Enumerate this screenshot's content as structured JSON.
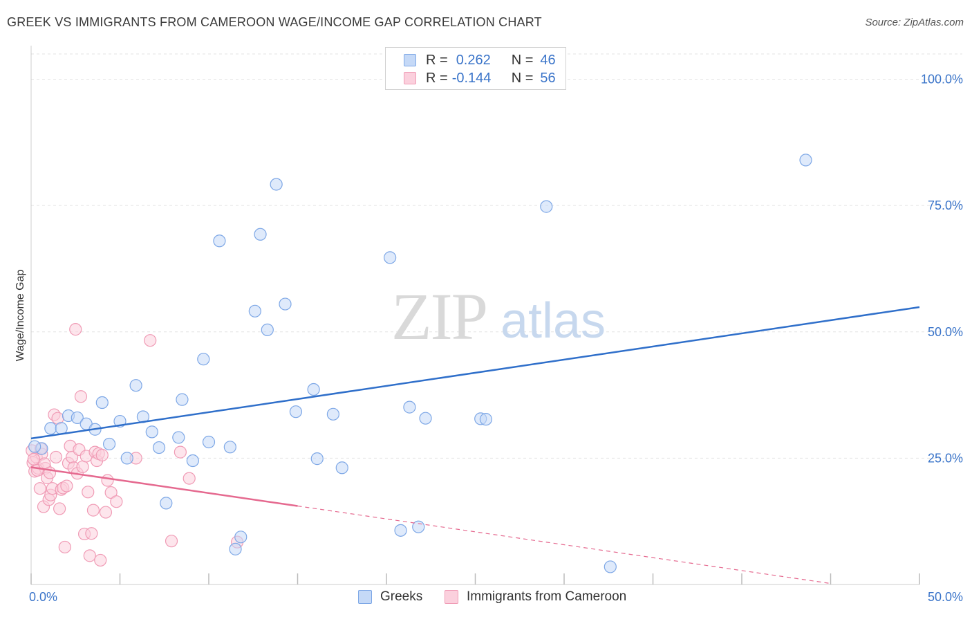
{
  "header": {
    "title": "GREEK VS IMMIGRANTS FROM CAMEROON WAGE/INCOME GAP CORRELATION CHART",
    "source": "Source: ZipAtlas.com"
  },
  "legend": {
    "r_label": "R =",
    "n_label": "N =",
    "blue": {
      "r": "0.262",
      "n": "46"
    },
    "pink": {
      "r": "-0.144",
      "n": "56"
    }
  },
  "bottom_legend": {
    "greeks": "Greeks",
    "cameroon": "Immigrants from Cameroon"
  },
  "watermark": {
    "zip": "ZIP",
    "atlas": "atlas"
  },
  "colors": {
    "blue_fill": "#c5d9f7",
    "blue_stroke": "#7da7e6",
    "blue_line": "#2f6fca",
    "pink_fill": "#fbd0dd",
    "pink_stroke": "#f09bb5",
    "pink_line": "#e5698f",
    "tick_label": "#3a74c9",
    "grid": "#e3e3e3"
  },
  "chart_data": {
    "type": "scatter",
    "title": "GREEK VS IMMIGRANTS FROM CAMEROON WAGE/INCOME GAP CORRELATION CHART",
    "xlabel": "",
    "ylabel": "Wage/Income Gap",
    "xlim": [
      0,
      50
    ],
    "ylim": [
      0,
      105
    ],
    "x_tick_labels": [
      {
        "v": 0,
        "label": "0.0%"
      },
      {
        "v": 50,
        "label": "50.0%"
      }
    ],
    "x_tick_marks": [
      0,
      5,
      10,
      15,
      20,
      25,
      30,
      35,
      40,
      45,
      50
    ],
    "y_ticks": [
      {
        "v": 25,
        "label": "25.0%"
      },
      {
        "v": 50,
        "label": "50.0%"
      },
      {
        "v": 75,
        "label": "75.0%"
      },
      {
        "v": 100,
        "label": "100.0%"
      }
    ],
    "legend_position": "top-center",
    "series": [
      {
        "name": "Greeks",
        "color": "blue",
        "trend": {
          "x0": 0,
          "y0": 28.9,
          "x1": 50,
          "y1": 54.9,
          "solid_to": 50
        },
        "points": [
          [
            0.6,
            26.9
          ],
          [
            1.1,
            30.9
          ],
          [
            1.7,
            30.9
          ],
          [
            2.1,
            33.4
          ],
          [
            2.6,
            33.0
          ],
          [
            3.1,
            31.8
          ],
          [
            3.6,
            30.7
          ],
          [
            4.0,
            36.0
          ],
          [
            4.4,
            27.8
          ],
          [
            5.0,
            32.3
          ],
          [
            5.4,
            25.0
          ],
          [
            5.9,
            39.4
          ],
          [
            6.3,
            33.2
          ],
          [
            6.8,
            30.2
          ],
          [
            7.2,
            27.1
          ],
          [
            7.6,
            16.1
          ],
          [
            8.3,
            29.1
          ],
          [
            8.5,
            36.6
          ],
          [
            9.1,
            24.5
          ],
          [
            9.7,
            44.6
          ],
          [
            10.0,
            28.2
          ],
          [
            10.6,
            68.0
          ],
          [
            11.2,
            27.2
          ],
          [
            11.5,
            7.0
          ],
          [
            11.8,
            9.4
          ],
          [
            12.6,
            54.1
          ],
          [
            12.9,
            69.3
          ],
          [
            13.3,
            50.4
          ],
          [
            13.8,
            79.2
          ],
          [
            14.3,
            55.5
          ],
          [
            14.9,
            34.2
          ],
          [
            15.9,
            38.6
          ],
          [
            16.1,
            24.9
          ],
          [
            17.0,
            33.7
          ],
          [
            17.5,
            23.1
          ],
          [
            20.2,
            64.7
          ],
          [
            20.8,
            10.7
          ],
          [
            21.3,
            35.1
          ],
          [
            21.8,
            11.4
          ],
          [
            22.2,
            32.9
          ],
          [
            25.3,
            32.8
          ],
          [
            25.6,
            32.7
          ],
          [
            29.0,
            74.8
          ],
          [
            32.6,
            3.5
          ],
          [
            43.6,
            84.0
          ],
          [
            0.2,
            27.3
          ]
        ]
      },
      {
        "name": "Immigrants from Cameroon",
        "color": "pink",
        "trend": {
          "x0": 0,
          "y0": 23.2,
          "x1": 45,
          "y1": 0.2,
          "solid_to": 15
        },
        "points": [
          [
            0.1,
            24.1
          ],
          [
            0.2,
            22.4
          ],
          [
            0.3,
            25.2
          ],
          [
            0.4,
            23.0
          ],
          [
            0.5,
            19.0
          ],
          [
            0.6,
            25.8
          ],
          [
            0.7,
            15.4
          ],
          [
            0.8,
            23.0
          ],
          [
            0.9,
            21.1
          ],
          [
            1.0,
            16.8
          ],
          [
            1.1,
            17.7
          ],
          [
            1.2,
            19.0
          ],
          [
            1.3,
            33.6
          ],
          [
            1.4,
            25.2
          ],
          [
            1.5,
            32.9
          ],
          [
            1.6,
            15.0
          ],
          [
            1.7,
            18.8
          ],
          [
            1.8,
            19.1
          ],
          [
            1.9,
            7.4
          ],
          [
            2.0,
            19.5
          ],
          [
            2.1,
            24.0
          ],
          [
            2.2,
            27.4
          ],
          [
            2.3,
            25.2
          ],
          [
            2.4,
            23.1
          ],
          [
            2.5,
            50.5
          ],
          [
            2.6,
            22.0
          ],
          [
            2.7,
            26.7
          ],
          [
            2.8,
            37.2
          ],
          [
            2.9,
            23.3
          ],
          [
            3.0,
            10.0
          ],
          [
            3.1,
            25.4
          ],
          [
            3.2,
            18.3
          ],
          [
            3.3,
            5.7
          ],
          [
            3.4,
            10.1
          ],
          [
            3.5,
            14.7
          ],
          [
            3.6,
            26.2
          ],
          [
            3.7,
            24.5
          ],
          [
            3.8,
            25.9
          ],
          [
            3.9,
            4.8
          ],
          [
            4.0,
            25.6
          ],
          [
            4.2,
            14.3
          ],
          [
            4.3,
            20.6
          ],
          [
            4.5,
            18.2
          ],
          [
            4.8,
            16.4
          ],
          [
            5.9,
            25.0
          ],
          [
            6.7,
            48.3
          ],
          [
            7.9,
            8.6
          ],
          [
            8.4,
            26.2
          ],
          [
            8.9,
            21.0
          ],
          [
            11.6,
            8.4
          ],
          [
            0.05,
            26.5
          ],
          [
            0.15,
            24.8
          ],
          [
            0.35,
            22.6
          ],
          [
            0.55,
            26.9
          ],
          [
            0.75,
            23.9
          ],
          [
            1.05,
            22.1
          ]
        ]
      }
    ]
  }
}
